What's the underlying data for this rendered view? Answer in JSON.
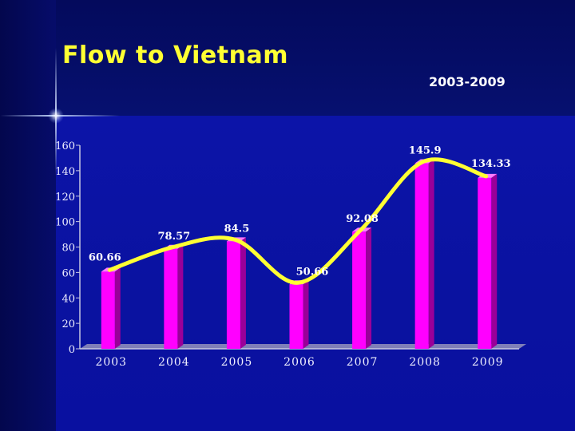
{
  "slide": {
    "title": "Flow to Vietnam",
    "subtitle": "2003-2009"
  },
  "chart_data": {
    "type": "bar",
    "title": "Flow to Vietnam",
    "subtitle": "2003-2009",
    "categories": [
      "2003",
      "2004",
      "2005",
      "2006",
      "2007",
      "2008",
      "2009"
    ],
    "values": [
      60.66,
      78.57,
      84.5,
      50.66,
      92.08,
      145.9,
      134.33
    ],
    "data_labels": [
      "60.66",
      "78.57",
      "84.5",
      "50.66",
      "92.08",
      "145.9",
      "134.33"
    ],
    "ylim": [
      0,
      160
    ],
    "yticks": [
      0,
      20,
      40,
      60,
      80,
      100,
      120,
      140,
      160
    ],
    "grid": false,
    "legend": "none",
    "trend_line": true,
    "colors": {
      "bar": "#ff00ff",
      "bar_side": "#9a0099",
      "bar_top": "#ff7bff",
      "trend_line": "#ffff33",
      "title": "#ffff33"
    }
  }
}
